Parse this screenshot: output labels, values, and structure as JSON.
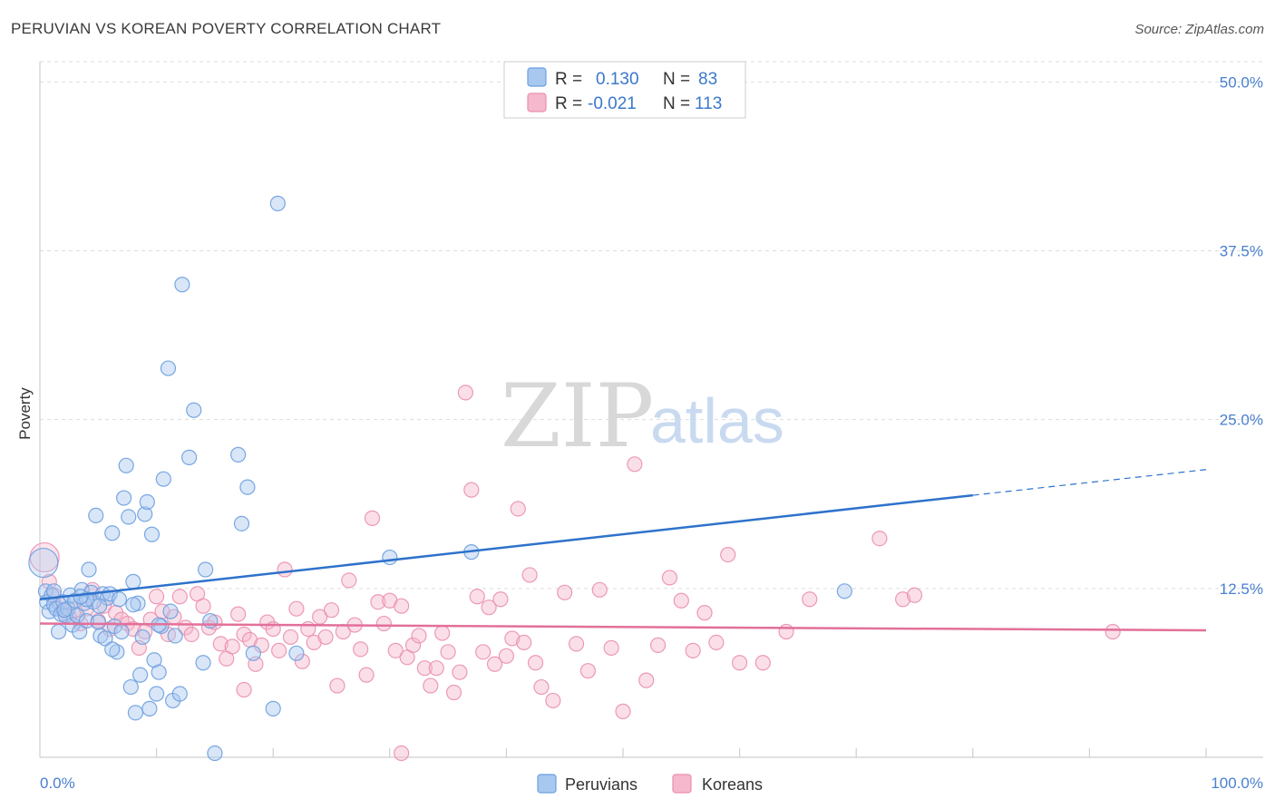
{
  "header": {
    "title": "PERUVIAN VS KOREAN POVERTY CORRELATION CHART",
    "source": "Source: ZipAtlas.com"
  },
  "watermark": {
    "zip": "ZIP",
    "atlas": "atlas"
  },
  "legend": {
    "peruvians": {
      "r_label": "R =",
      "r_value": "0.130",
      "n_label": "N =",
      "n_value": "83"
    },
    "koreans": {
      "r_label": "R =",
      "r_value": "-0.021",
      "n_label": "N =",
      "n_value": "113"
    }
  },
  "bottom_legend": {
    "peruvians": "Peruvians",
    "koreans": "Koreans"
  },
  "colors": {
    "peruvians_fill": "#a9c8ef",
    "peruvians_stroke": "#6b9fdf",
    "peruvians_line": "#2e72cc",
    "koreans_fill": "#f6b8cc",
    "koreans_stroke": "#ea8fb0",
    "koreans_line": "#e2709a",
    "tick_text": "#4a7fd0",
    "grid": "#dddddd"
  },
  "chart_data": {
    "type": "scatter",
    "title": "PERUVIAN VS KOREAN POVERTY CORRELATION CHART",
    "xlabel": "",
    "ylabel": "Poverty",
    "xlim": [
      0,
      100
    ],
    "ylim": [
      0,
      51.5
    ],
    "y_ticks": [
      {
        "value": 12.5,
        "label": "12.5%"
      },
      {
        "value": 25.0,
        "label": "25.0%"
      },
      {
        "value": 37.5,
        "label": "37.5%"
      },
      {
        "value": 50.0,
        "label": "50.0%"
      }
    ],
    "x_tick_labels": {
      "min": "0.0%",
      "max": "100.0%"
    },
    "series": [
      {
        "name": "Peruvians",
        "trend": {
          "x0": 0,
          "y0": 11.7,
          "x1": 80,
          "y1": 19.4,
          "dashed_to_x": 100,
          "dashed_y": 21.3
        },
        "points": [
          [
            0.3,
            14.4
          ],
          [
            0.5,
            12.3
          ],
          [
            0.6,
            11.5
          ],
          [
            0.8,
            10.8
          ],
          [
            1.0,
            12.0
          ],
          [
            1.2,
            11.3
          ],
          [
            1.4,
            11.0
          ],
          [
            1.6,
            9.3
          ],
          [
            1.8,
            10.6
          ],
          [
            2.0,
            11.5
          ],
          [
            2.2,
            10.5
          ],
          [
            2.4,
            11.0
          ],
          [
            2.6,
            12.0
          ],
          [
            2.8,
            9.8
          ],
          [
            3.0,
            11.6
          ],
          [
            3.2,
            10.5
          ],
          [
            3.4,
            9.3
          ],
          [
            3.6,
            12.4
          ],
          [
            3.8,
            11.4
          ],
          [
            4.0,
            10.1
          ],
          [
            4.2,
            13.9
          ],
          [
            4.4,
            12.2
          ],
          [
            4.6,
            11.5
          ],
          [
            4.8,
            17.9
          ],
          [
            5.0,
            10.0
          ],
          [
            5.2,
            9.0
          ],
          [
            5.4,
            12.1
          ],
          [
            5.6,
            8.8
          ],
          [
            5.8,
            11.8
          ],
          [
            6.0,
            12.1
          ],
          [
            6.2,
            16.6
          ],
          [
            6.4,
            9.7
          ],
          [
            6.6,
            7.8
          ],
          [
            6.8,
            11.7
          ],
          [
            7.0,
            9.3
          ],
          [
            7.2,
            19.2
          ],
          [
            7.4,
            21.6
          ],
          [
            7.6,
            17.8
          ],
          [
            7.8,
            5.2
          ],
          [
            8.0,
            13.0
          ],
          [
            8.2,
            3.3
          ],
          [
            8.4,
            11.4
          ],
          [
            8.6,
            6.1
          ],
          [
            8.8,
            8.9
          ],
          [
            9.0,
            18.0
          ],
          [
            9.2,
            18.9
          ],
          [
            9.4,
            3.6
          ],
          [
            9.6,
            16.5
          ],
          [
            9.8,
            7.2
          ],
          [
            10.0,
            4.7
          ],
          [
            10.2,
            6.3
          ],
          [
            10.4,
            9.7
          ],
          [
            10.6,
            20.6
          ],
          [
            11.0,
            28.8
          ],
          [
            11.2,
            10.8
          ],
          [
            11.4,
            4.2
          ],
          [
            11.6,
            9.0
          ],
          [
            12.0,
            4.7
          ],
          [
            12.2,
            35.0
          ],
          [
            12.8,
            22.2
          ],
          [
            13.2,
            25.7
          ],
          [
            14.0,
            7.0
          ],
          [
            14.2,
            13.9
          ],
          [
            14.6,
            10.1
          ],
          [
            15.0,
            0.3
          ],
          [
            17.0,
            22.4
          ],
          [
            17.3,
            17.3
          ],
          [
            17.8,
            20.0
          ],
          [
            18.3,
            7.7
          ],
          [
            20.0,
            3.6
          ],
          [
            20.4,
            41.0
          ],
          [
            22.0,
            7.7
          ],
          [
            30.0,
            14.8
          ],
          [
            37.0,
            15.2
          ],
          [
            69.0,
            12.3
          ],
          [
            8.0,
            11.3
          ],
          [
            4.0,
            11.7
          ],
          [
            6.2,
            8.0
          ],
          [
            2.1,
            10.9
          ],
          [
            1.2,
            12.3
          ],
          [
            3.5,
            11.9
          ],
          [
            5.1,
            11.2
          ],
          [
            10.2,
            9.8
          ]
        ]
      },
      {
        "name": "Koreans",
        "trend": {
          "x0": 0,
          "y0": 9.9,
          "x1": 100,
          "y1": 9.4
        },
        "points": [
          [
            0.4,
            14.8
          ],
          [
            0.8,
            13.0
          ],
          [
            1.2,
            12.0
          ],
          [
            1.6,
            11.4
          ],
          [
            2.0,
            10.9
          ],
          [
            2.5,
            10.4
          ],
          [
            3.0,
            10.9
          ],
          [
            3.5,
            9.9
          ],
          [
            4.0,
            11.0
          ],
          [
            4.5,
            12.4
          ],
          [
            5.0,
            10.1
          ],
          [
            5.5,
            11.2
          ],
          [
            6.0,
            9.5
          ],
          [
            6.5,
            10.7
          ],
          [
            7.0,
            10.2
          ],
          [
            7.5,
            9.9
          ],
          [
            8.0,
            9.5
          ],
          [
            8.5,
            8.1
          ],
          [
            9.0,
            9.3
          ],
          [
            9.5,
            10.2
          ],
          [
            10.0,
            11.9
          ],
          [
            10.5,
            10.8
          ],
          [
            11.0,
            9.1
          ],
          [
            11.5,
            10.4
          ],
          [
            12.0,
            11.9
          ],
          [
            12.5,
            9.6
          ],
          [
            13.0,
            9.1
          ],
          [
            13.5,
            12.1
          ],
          [
            14.0,
            11.2
          ],
          [
            14.5,
            9.6
          ],
          [
            15.0,
            10.0
          ],
          [
            15.5,
            8.4
          ],
          [
            16.0,
            7.3
          ],
          [
            16.5,
            8.2
          ],
          [
            17.0,
            10.6
          ],
          [
            17.5,
            9.1
          ],
          [
            18.0,
            8.7
          ],
          [
            18.5,
            6.9
          ],
          [
            19.0,
            8.3
          ],
          [
            19.5,
            10.0
          ],
          [
            20.0,
            9.5
          ],
          [
            20.5,
            7.9
          ],
          [
            21.0,
            13.9
          ],
          [
            21.5,
            8.9
          ],
          [
            22.0,
            11.0
          ],
          [
            22.5,
            7.1
          ],
          [
            23.0,
            9.5
          ],
          [
            23.5,
            8.5
          ],
          [
            24.0,
            10.4
          ],
          [
            24.5,
            8.9
          ],
          [
            25.0,
            10.9
          ],
          [
            25.5,
            5.3
          ],
          [
            26.0,
            9.3
          ],
          [
            26.5,
            13.1
          ],
          [
            27.0,
            9.8
          ],
          [
            27.5,
            8.0
          ],
          [
            28.0,
            6.1
          ],
          [
            28.5,
            17.7
          ],
          [
            29.0,
            11.5
          ],
          [
            29.5,
            9.9
          ],
          [
            30.0,
            11.6
          ],
          [
            30.5,
            7.9
          ],
          [
            31.0,
            11.2
          ],
          [
            31.5,
            7.4
          ],
          [
            32.0,
            8.3
          ],
          [
            32.5,
            9.0
          ],
          [
            33.0,
            6.6
          ],
          [
            33.5,
            5.3
          ],
          [
            34.0,
            6.6
          ],
          [
            34.5,
            9.2
          ],
          [
            35.0,
            7.8
          ],
          [
            35.5,
            4.8
          ],
          [
            36.0,
            6.3
          ],
          [
            36.5,
            27.0
          ],
          [
            37.0,
            19.8
          ],
          [
            37.5,
            11.9
          ],
          [
            38.0,
            7.8
          ],
          [
            38.5,
            11.1
          ],
          [
            39.0,
            6.9
          ],
          [
            39.5,
            11.7
          ],
          [
            40.0,
            7.5
          ],
          [
            40.5,
            8.8
          ],
          [
            41.0,
            18.4
          ],
          [
            41.5,
            8.5
          ],
          [
            42.0,
            13.5
          ],
          [
            42.5,
            7.0
          ],
          [
            43.0,
            5.2
          ],
          [
            44.0,
            4.2
          ],
          [
            45.0,
            12.2
          ],
          [
            46.0,
            8.4
          ],
          [
            47.0,
            6.4
          ],
          [
            48.0,
            12.4
          ],
          [
            49.0,
            8.1
          ],
          [
            50.0,
            3.4
          ],
          [
            51.0,
            21.7
          ],
          [
            52.0,
            5.7
          ],
          [
            53.0,
            8.3
          ],
          [
            54.0,
            13.3
          ],
          [
            55.0,
            11.6
          ],
          [
            56.0,
            7.9
          ],
          [
            57.0,
            10.7
          ],
          [
            58.0,
            8.5
          ],
          [
            59.0,
            15.0
          ],
          [
            60.0,
            7.0
          ],
          [
            62.0,
            7.0
          ],
          [
            64.0,
            9.3
          ],
          [
            66.0,
            11.7
          ],
          [
            72.0,
            16.2
          ],
          [
            74.0,
            11.7
          ],
          [
            75.0,
            12.0
          ],
          [
            92.0,
            9.3
          ],
          [
            31.0,
            0.3
          ],
          [
            17.5,
            5.0
          ]
        ]
      }
    ]
  }
}
